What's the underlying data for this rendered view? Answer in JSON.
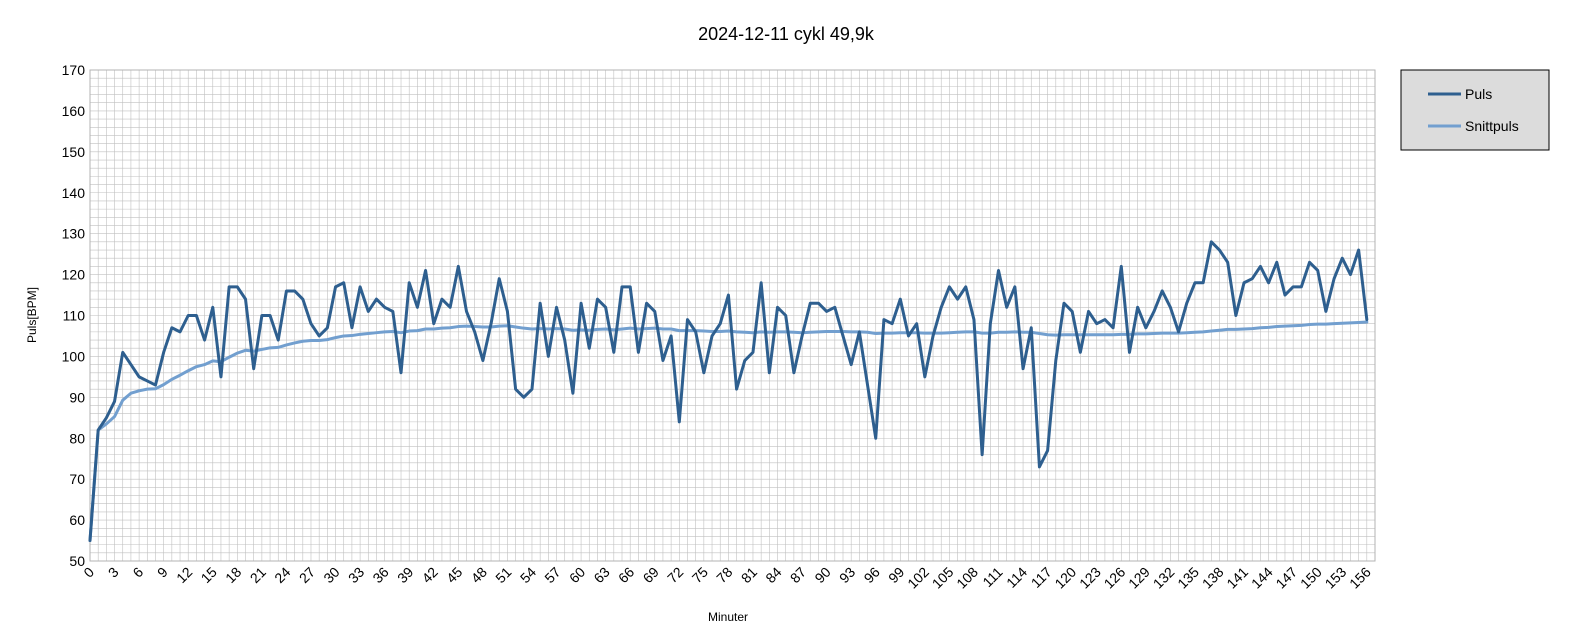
{
  "chart_data": {
    "type": "line",
    "title": "2024-12-11 cykl 49,9k",
    "xlabel": "Minuter",
    "ylabel": "Puls[BPM]",
    "xlim": [
      0,
      157
    ],
    "ylim": [
      50,
      170
    ],
    "ytick_step": 10,
    "xtick_step": 3,
    "grid": true,
    "legend_position": "right",
    "colors": {
      "Puls": "#2e5f8f",
      "Snittpuls": "#729fcf",
      "legend_bg": "#dcdcdc",
      "grid": "#c0c0c0"
    },
    "series": [
      {
        "name": "Puls",
        "values": [
          55,
          82,
          85,
          89,
          101,
          98,
          95,
          94,
          93,
          101,
          107,
          106,
          110,
          110,
          104,
          112,
          95,
          117,
          117,
          114,
          97,
          110,
          110,
          104,
          116,
          116,
          114,
          108,
          105,
          107,
          117,
          118,
          107,
          117,
          111,
          114,
          112,
          111,
          96,
          118,
          112,
          121,
          108,
          114,
          112,
          122,
          111,
          106,
          99,
          108,
          119,
          111,
          92,
          90,
          92,
          113,
          100,
          112,
          104,
          91,
          113,
          102,
          114,
          112,
          101,
          117,
          117,
          101,
          113,
          111,
          99,
          105,
          84,
          109,
          106,
          96,
          105,
          108,
          115,
          92,
          99,
          101,
          118,
          96,
          112,
          110,
          96,
          105,
          113,
          113,
          111,
          112,
          105,
          98,
          106,
          93,
          80,
          109,
          108,
          114,
          105,
          108,
          95,
          105,
          112,
          117,
          114,
          117,
          109,
          76,
          108,
          121,
          112,
          117,
          97,
          107,
          73,
          77,
          99,
          113,
          111,
          101,
          111,
          108,
          109,
          107,
          122,
          101,
          112,
          107,
          111,
          116,
          112,
          106,
          113,
          118,
          118,
          128,
          126,
          123,
          110,
          118,
          119,
          122,
          118,
          123,
          115,
          117,
          117,
          123,
          121,
          111,
          119,
          124,
          120,
          126,
          109
        ]
      },
      {
        "name": "Snittpuls",
        "values": [
          55,
          82,
          83.5,
          85.3,
          89.3,
          91,
          91.6,
          92,
          92.1,
          93.1,
          94.4,
          95.4,
          96.5,
          97.5,
          98,
          98.9,
          98.7,
          99.8,
          100.8,
          101.5,
          101.3,
          101.7,
          102.1,
          102.2,
          102.8,
          103.3,
          103.7,
          103.9,
          103.9,
          104.1,
          104.6,
          105,
          105.1,
          105.4,
          105.6,
          105.8,
          106,
          106.1,
          105.8,
          106.2,
          106.3,
          106.7,
          106.7,
          106.9,
          107,
          107.3,
          107.4,
          107.3,
          107.2,
          107.2,
          107.4,
          107.5,
          107.2,
          106.9,
          106.7,
          106.8,
          106.7,
          106.8,
          106.7,
          106.4,
          106.5,
          106.4,
          106.6,
          106.7,
          106.5,
          106.7,
          106.9,
          106.7,
          106.8,
          106.9,
          106.7,
          106.7,
          106.3,
          106.3,
          106.3,
          106.2,
          106.1,
          106.1,
          106.2,
          106,
          105.9,
          105.8,
          106,
          105.9,
          106,
          106,
          105.9,
          105.8,
          105.9,
          106,
          106.1,
          106.1,
          106.1,
          106,
          106,
          105.9,
          105.6,
          105.7,
          105.7,
          105.8,
          105.8,
          105.8,
          105.7,
          105.7,
          105.7,
          105.8,
          105.9,
          106,
          106,
          105.7,
          105.7,
          105.9,
          105.9,
          106,
          105.9,
          105.9,
          105.6,
          105.3,
          105.2,
          105.3,
          105.3,
          105.3,
          105.3,
          105.3,
          105.3,
          105.3,
          105.4,
          105.4,
          105.5,
          105.5,
          105.6,
          105.7,
          105.7,
          105.7,
          105.8,
          105.9,
          106,
          106.2,
          106.4,
          106.6,
          106.6,
          106.7,
          106.8,
          107,
          107.1,
          107.3,
          107.4,
          107.5,
          107.6,
          107.8,
          107.9,
          107.9,
          108,
          108.1,
          108.2,
          108.3,
          108.4
        ]
      }
    ]
  }
}
